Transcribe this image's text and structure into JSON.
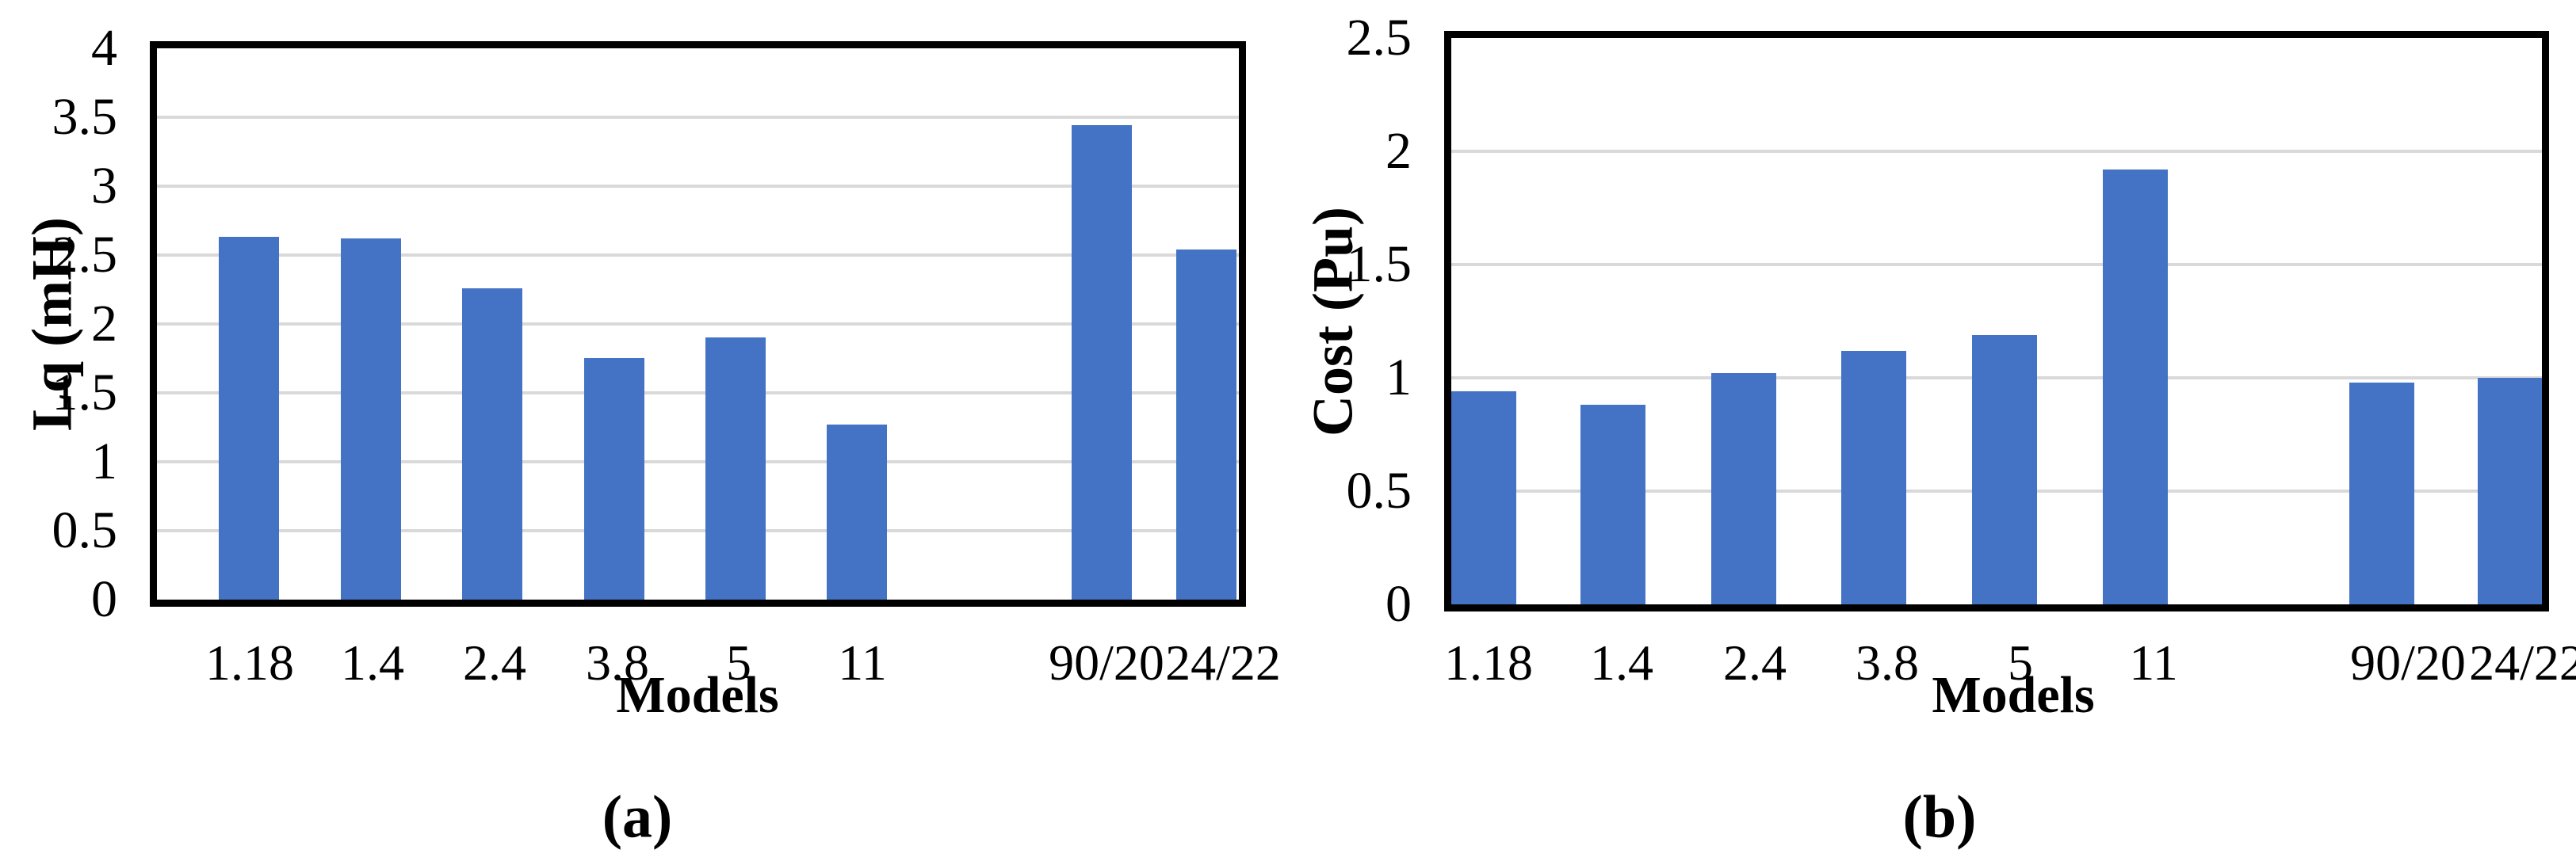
{
  "figure": {
    "background": "#FFFFFF"
  },
  "chart_data": [
    {
      "id": "a",
      "type": "bar",
      "title": "",
      "xlabel": "Models",
      "ylabel": "Lq (mH)",
      "caption": "(a)",
      "categories": [
        "1.18",
        "1.4",
        "2.4",
        "3.8",
        "5",
        "11",
        "90/20",
        "24/22"
      ],
      "values": [
        2.63,
        2.62,
        2.26,
        1.75,
        1.9,
        1.27,
        3.44,
        2.54
      ],
      "ylim": [
        0,
        4
      ],
      "ytick_step": 0.5,
      "yticks": [
        "0",
        "0.5",
        "1",
        "1.5",
        "2",
        "2.5",
        "3",
        "3.5",
        "4"
      ],
      "grid": true,
      "legend": false,
      "gap_after_category": "11",
      "bar_color": "#4472C4",
      "grid_color": "#D9D9D9",
      "axis_color": "#000000"
    },
    {
      "id": "b",
      "type": "bar",
      "title": "",
      "xlabel": "Models",
      "ylabel": "Cost (Pu)",
      "caption": "(b)",
      "categories": [
        "1.18",
        "1.4",
        "2.4",
        "3.8",
        "5",
        "11",
        "90/20",
        "24/22"
      ],
      "values": [
        0.94,
        0.88,
        1.02,
        1.12,
        1.19,
        1.92,
        0.98,
        1.0
      ],
      "ylim": [
        0,
        2.5
      ],
      "ytick_step": 0.5,
      "yticks": [
        "0",
        "0.5",
        "1",
        "1.5",
        "2",
        "2.5"
      ],
      "grid": true,
      "legend": false,
      "gap_after_category": "11",
      "bar_color": "#4472C4",
      "grid_color": "#D9D9D9",
      "axis_color": "#000000"
    }
  ]
}
